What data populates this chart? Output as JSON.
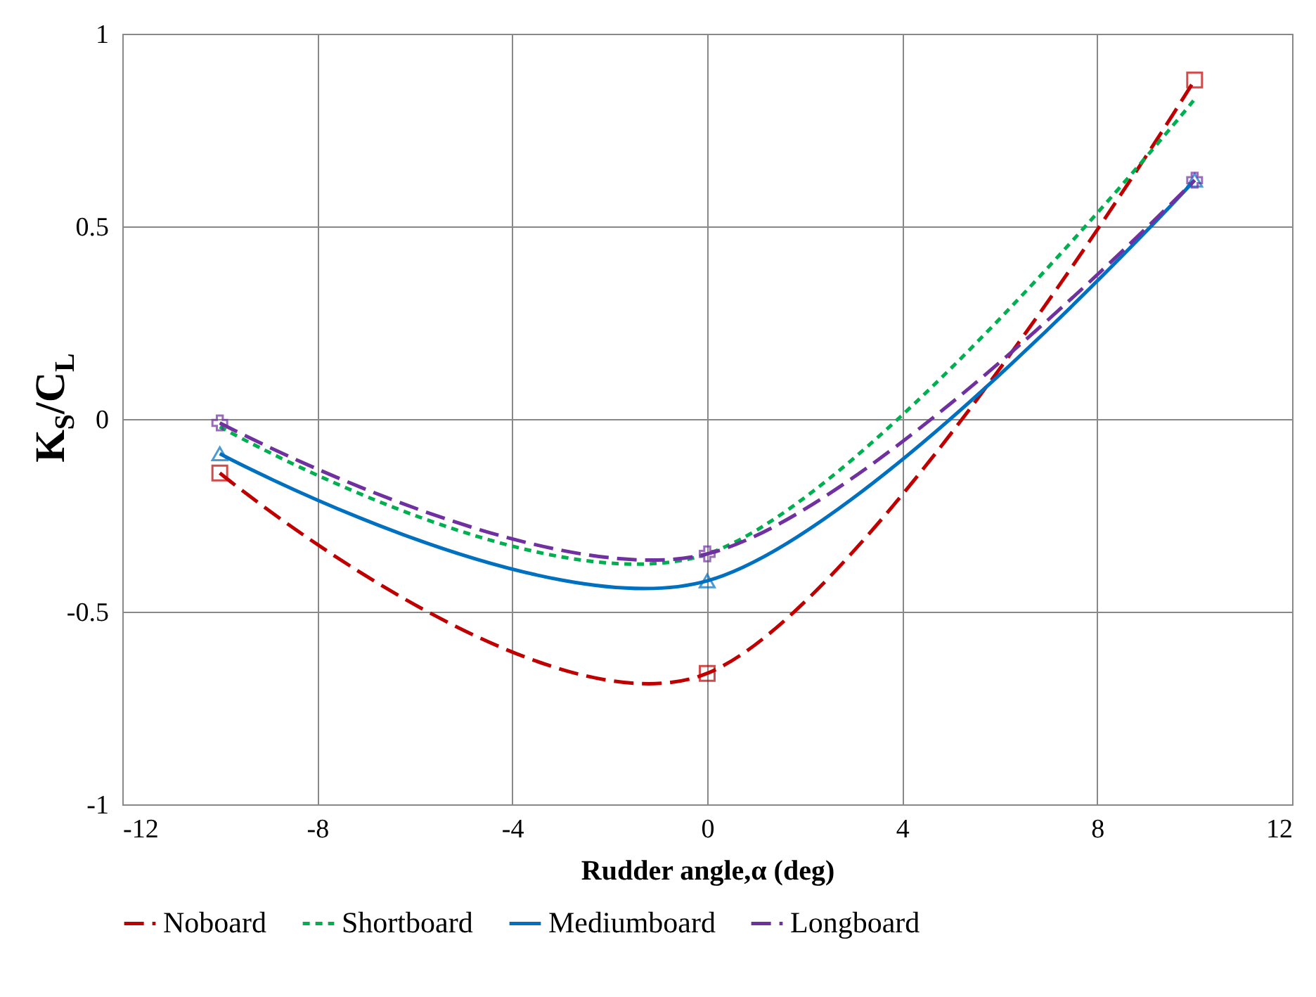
{
  "chart_data": {
    "type": "line",
    "xlabel": "Rudder angle,α (deg)",
    "ylabel": "K$_{S}$/C$_{L}$",
    "x": [
      -10,
      0,
      10
    ],
    "series": [
      {
        "name": "Noboard",
        "color": "#c00000",
        "values": [
          -0.14,
          -0.66,
          0.88
        ],
        "marker": "square",
        "line_style": "dashed"
      },
      {
        "name": "Shortboard",
        "color": "#00b050",
        "values": [
          -0.02,
          -0.35,
          0.83
        ],
        "marker": "none",
        "line_style": "dotted"
      },
      {
        "name": "Mediumboard",
        "color": "#0070c0",
        "values": [
          -0.09,
          -0.42,
          0.62
        ],
        "marker": "triangle",
        "line_style": "solid"
      },
      {
        "name": "Longboard",
        "color": "#7030a0",
        "values": [
          -0.01,
          -0.35,
          0.62
        ],
        "marker": "cross",
        "line_style": "dashed"
      }
    ],
    "xlim": [
      -12,
      12
    ],
    "xticks": [
      -12,
      -8,
      -4,
      0,
      4,
      8,
      12
    ],
    "ylim": [
      -1,
      1
    ],
    "yticks": [
      -1,
      -0.5,
      0,
      0.5,
      1
    ],
    "grid": true,
    "legend": "bottom"
  }
}
